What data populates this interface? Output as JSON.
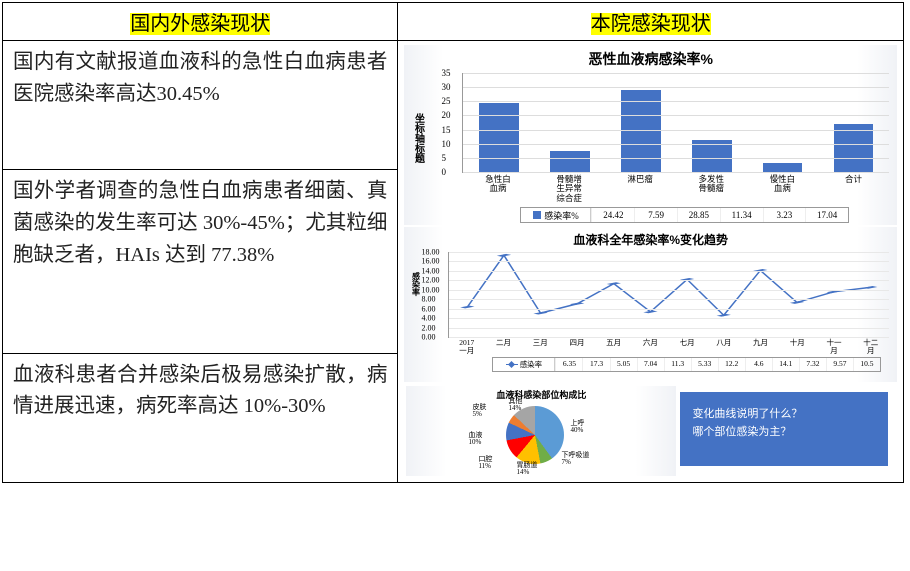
{
  "headers": {
    "left": "国内外感染现状",
    "right": "本院感染现状"
  },
  "left_rows": {
    "r1": "国内有文献报道血液科的急性白血病患者医院感染率高达30.45%",
    "r2": "国外学者调查的急性白血病患者细菌、真菌感染的发生率可达 30%-45%；尤其粒细胞缺乏者，HAIs 达到 77.38%",
    "r3": "血液科患者合并感染后极易感染扩散，病情进展迅速，病死率高达 10%-30%"
  },
  "bar_chart": {
    "title": "恶性血液病感染率%",
    "y_label": "坐标轴标题",
    "y_max": 35,
    "y_step": 5,
    "categories": [
      "急性白\n血病",
      "骨髓增\n生异常\n综合症",
      "淋巴瘤",
      "多发性\n骨髓瘤",
      "慢性白\n血病",
      "合计"
    ],
    "values": [
      24.42,
      7.59,
      28.85,
      11.34,
      3.23,
      17.04
    ],
    "bar_color": "#4472c4",
    "legend": "感染率%"
  },
  "line_chart": {
    "title": "血液科全年感染率%变化趋势",
    "y_label": "感染率",
    "y_max": 18,
    "y_step": 2,
    "months": [
      "2017\n一月",
      "二月",
      "三月",
      "四月",
      "五月",
      "六月",
      "七月",
      "八月",
      "九月",
      "十月",
      "十一\n月",
      "十二\n月"
    ],
    "values": [
      6.35,
      17.3,
      5.05,
      7.04,
      11.3,
      5.33,
      12.2,
      4.6,
      14.1,
      7.32,
      9.57,
      10.5
    ],
    "line_color": "#4472c4",
    "legend": "感染率"
  },
  "pie_chart": {
    "title": "血液科感染部位构成比",
    "slices": [
      {
        "label": "上呼\n40%",
        "color": "#5b9bd5",
        "end": 40
      },
      {
        "label": "下呼吸道\n7%",
        "color": "#70ad47",
        "end": 47
      },
      {
        "label": "胃肠道\n14%",
        "color": "#ffc000",
        "end": 61
      },
      {
        "label": "口腔\n11%",
        "color": "#ff0000",
        "end": 72
      },
      {
        "label": "血液\n10%",
        "color": "#4472c4",
        "end": 82
      },
      {
        "label": "皮肤\n5%",
        "color": "#ed7d31",
        "end": 87
      },
      {
        "label": "其他\n14%",
        "color": "#a5a5a5",
        "end": 100
      }
    ]
  },
  "question_box": {
    "l1": "变化曲线说明了什么？",
    "l2": "哪个部位感染为主？"
  }
}
